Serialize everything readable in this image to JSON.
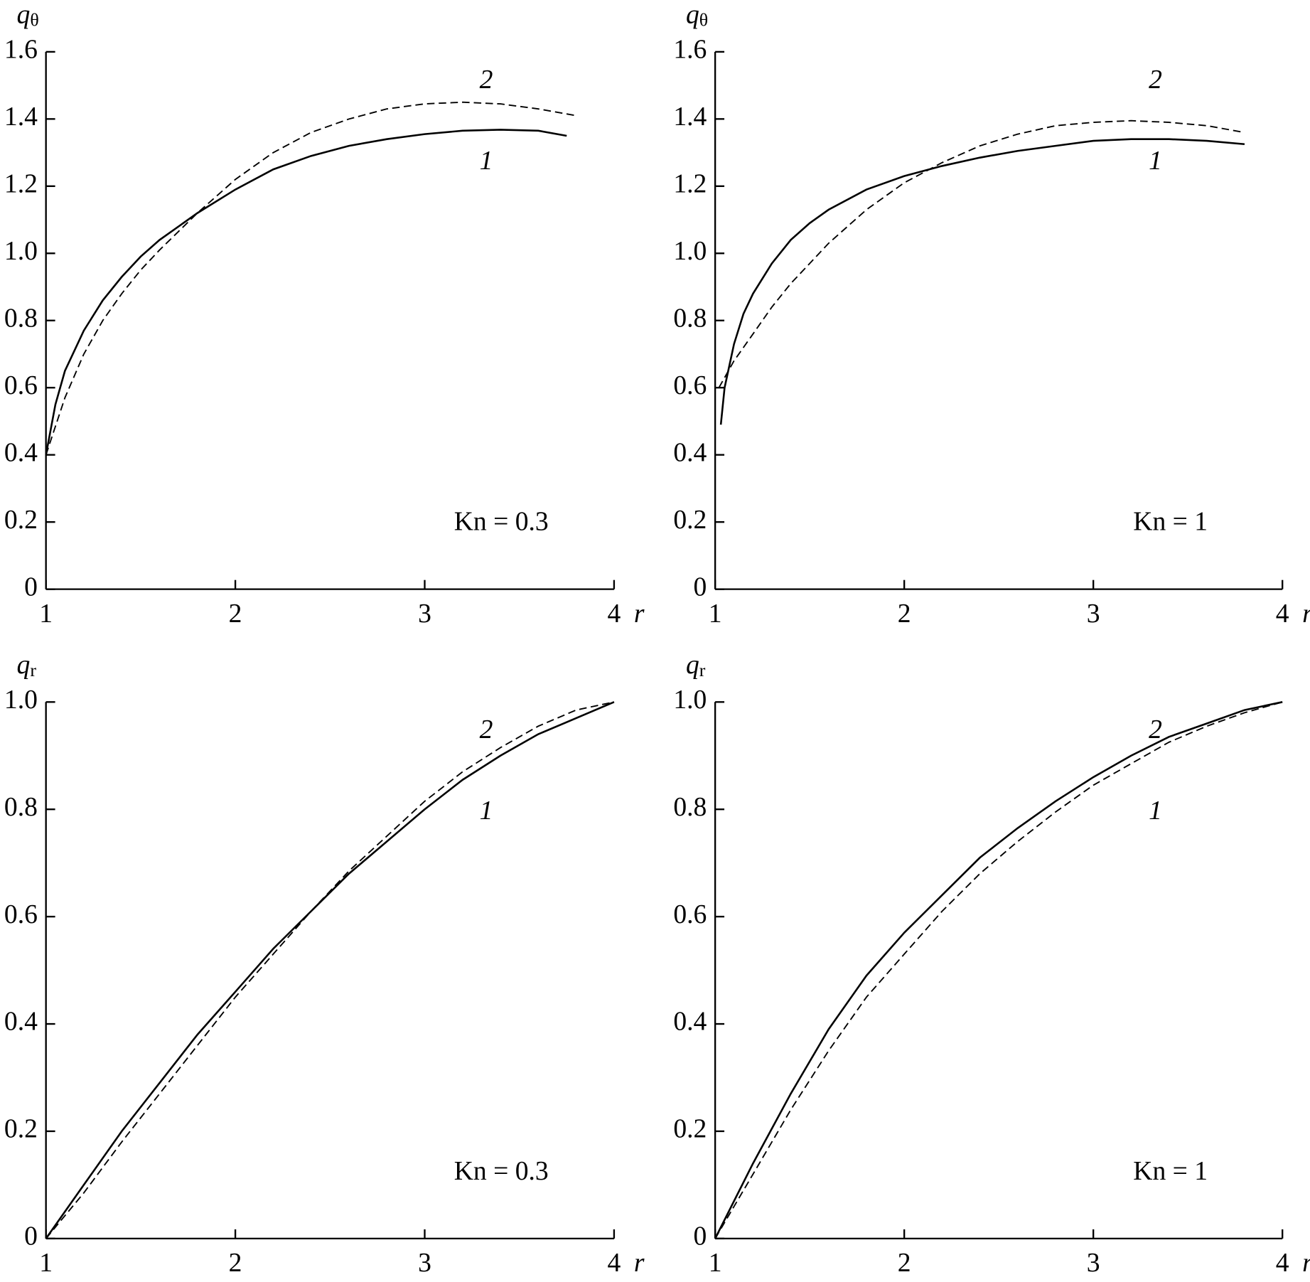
{
  "chart_data": [
    {
      "type": "line",
      "y_label": "q",
      "y_label_sub": "θ",
      "x_label": "r",
      "annotation": "Kn = 0.3",
      "xlim": [
        1,
        4
      ],
      "xticks": [
        1,
        2,
        3,
        4
      ],
      "ylim": [
        0,
        1.6
      ],
      "yticks": [
        0,
        0.2,
        0.4,
        0.6,
        0.8,
        {
          "value": 1,
          "label": "1.0"
        },
        1.2,
        1.4,
        1.6
      ],
      "series": [
        {
          "name": "1",
          "color": "#000000",
          "style": "solid",
          "x": [
            1,
            1.05,
            1.1,
            1.2,
            1.3,
            1.4,
            1.5,
            1.6,
            1.8,
            2.0,
            2.2,
            2.4,
            2.6,
            2.8,
            3.0,
            3.2,
            3.4,
            3.6,
            3.75
          ],
          "values": [
            0.4,
            0.55,
            0.65,
            0.77,
            0.86,
            0.93,
            0.99,
            1.04,
            1.12,
            1.19,
            1.25,
            1.29,
            1.32,
            1.34,
            1.355,
            1.365,
            1.368,
            1.365,
            1.35
          ]
        },
        {
          "name": "2",
          "color": "#000000",
          "style": "dashed",
          "x": [
            1,
            1.1,
            1.2,
            1.3,
            1.4,
            1.5,
            1.6,
            1.8,
            2.0,
            2.2,
            2.4,
            2.6,
            2.8,
            3.0,
            3.2,
            3.4,
            3.6,
            3.8
          ],
          "values": [
            0.4,
            0.57,
            0.7,
            0.8,
            0.88,
            0.95,
            1.01,
            1.12,
            1.22,
            1.3,
            1.36,
            1.4,
            1.43,
            1.445,
            1.45,
            1.445,
            1.43,
            1.41
          ]
        }
      ]
    },
    {
      "type": "line",
      "y_label": "q",
      "y_label_sub": "θ",
      "x_label": "r",
      "annotation": "Kn = 1",
      "xlim": [
        1,
        4
      ],
      "xticks": [
        1,
        2,
        3,
        4
      ],
      "ylim": [
        0,
        1.6
      ],
      "yticks": [
        0,
        0.2,
        0.4,
        0.6,
        0.8,
        {
          "value": 1,
          "label": "1.0"
        },
        1.2,
        1.4,
        1.6
      ],
      "series": [
        {
          "name": "1",
          "color": "#000000",
          "style": "solid",
          "x": [
            1.03,
            1.05,
            1.1,
            1.15,
            1.2,
            1.3,
            1.4,
            1.5,
            1.6,
            1.8,
            2.0,
            2.2,
            2.4,
            2.6,
            2.8,
            3.0,
            3.2,
            3.4,
            3.6,
            3.8
          ],
          "values": [
            0.49,
            0.6,
            0.73,
            0.82,
            0.88,
            0.97,
            1.04,
            1.09,
            1.13,
            1.19,
            1.23,
            1.26,
            1.285,
            1.305,
            1.32,
            1.335,
            1.34,
            1.34,
            1.335,
            1.325
          ]
        },
        {
          "name": "2",
          "color": "#000000",
          "style": "dashed",
          "x": [
            1.02,
            1.1,
            1.2,
            1.3,
            1.4,
            1.5,
            1.6,
            1.8,
            2.0,
            2.2,
            2.4,
            2.6,
            2.8,
            3.0,
            3.2,
            3.4,
            3.6,
            3.8
          ],
          "values": [
            0.6,
            0.68,
            0.76,
            0.84,
            0.91,
            0.97,
            1.03,
            1.13,
            1.21,
            1.27,
            1.32,
            1.355,
            1.38,
            1.39,
            1.395,
            1.39,
            1.38,
            1.36
          ]
        }
      ]
    },
    {
      "type": "line",
      "y_label": "q",
      "y_label_sub": "r",
      "x_label": "r",
      "annotation": "Kn = 0.3",
      "xlim": [
        1,
        4
      ],
      "xticks": [
        1,
        2,
        3,
        4
      ],
      "ylim": [
        0,
        1
      ],
      "yticks": [
        0,
        0.2,
        0.4,
        0.6,
        0.8,
        {
          "value": 1,
          "label": "1.0"
        }
      ],
      "series": [
        {
          "name": "1",
          "color": "#000000",
          "style": "solid",
          "x": [
            1,
            1.2,
            1.4,
            1.6,
            1.8,
            2.0,
            2.2,
            2.4,
            2.6,
            2.8,
            3.0,
            3.2,
            3.4,
            3.6,
            3.8,
            4.0
          ],
          "values": [
            0,
            0.1,
            0.2,
            0.29,
            0.38,
            0.46,
            0.54,
            0.61,
            0.68,
            0.74,
            0.8,
            0.855,
            0.9,
            0.94,
            0.97,
            1.0
          ]
        },
        {
          "name": "2",
          "color": "#000000",
          "style": "dashed",
          "x": [
            1,
            1.2,
            1.4,
            1.6,
            1.8,
            2.0,
            2.2,
            2.4,
            2.6,
            2.8,
            3.0,
            3.2,
            3.4,
            3.6,
            3.8,
            4.0
          ],
          "values": [
            0,
            0.085,
            0.18,
            0.27,
            0.36,
            0.45,
            0.53,
            0.61,
            0.685,
            0.75,
            0.815,
            0.87,
            0.915,
            0.955,
            0.985,
            1.0
          ]
        }
      ]
    },
    {
      "type": "line",
      "y_label": "q",
      "y_label_sub": "r",
      "x_label": "r",
      "annotation": "Kn = 1",
      "xlim": [
        1,
        4
      ],
      "xticks": [
        1,
        2,
        3,
        4
      ],
      "ylim": [
        0,
        1
      ],
      "yticks": [
        0,
        0.2,
        0.4,
        0.6,
        0.8,
        {
          "value": 1,
          "label": "1.0"
        }
      ],
      "series": [
        {
          "name": "1",
          "color": "#000000",
          "style": "solid",
          "x": [
            1,
            1.2,
            1.4,
            1.6,
            1.8,
            2.0,
            2.2,
            2.4,
            2.6,
            2.8,
            3.0,
            3.2,
            3.4,
            3.6,
            3.8,
            4.0
          ],
          "values": [
            0,
            0.14,
            0.27,
            0.39,
            0.49,
            0.57,
            0.64,
            0.71,
            0.765,
            0.815,
            0.86,
            0.9,
            0.935,
            0.96,
            0.985,
            1.0
          ]
        },
        {
          "name": "2",
          "color": "#000000",
          "style": "dashed",
          "x": [
            1,
            1.2,
            1.4,
            1.6,
            1.8,
            2.0,
            2.2,
            2.4,
            2.6,
            2.8,
            3.0,
            3.2,
            3.4,
            3.6,
            3.8,
            4.0
          ],
          "values": [
            0,
            0.12,
            0.24,
            0.35,
            0.45,
            0.53,
            0.61,
            0.68,
            0.74,
            0.795,
            0.845,
            0.885,
            0.925,
            0.955,
            0.98,
            1.0
          ]
        }
      ]
    }
  ]
}
